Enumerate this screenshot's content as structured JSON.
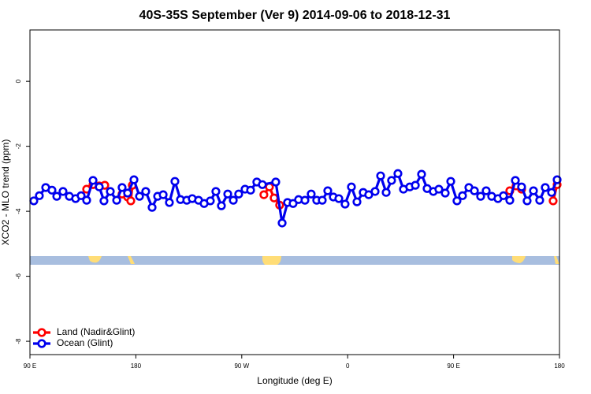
{
  "chart_data": {
    "type": "line",
    "title": "40S-35S September (Ver 9)   2014-09-06 to 2018-12-31",
    "xlabel": "Longitude (deg E)",
    "ylabel": "XCO2 - MLO trend (ppm)",
    "xlim": [
      90,
      540
    ],
    "xticks": [
      {
        "value": 90,
        "label": "90 E"
      },
      180,
      {
        "value": 270,
        "label": "90 W"
      },
      {
        "value": 360,
        "label": "0"
      },
      {
        "value": 450,
        "label": "90 E"
      },
      {
        "value": 540,
        "label": "180"
      }
    ],
    "ylim": [
      -8.41,
      1.58
    ],
    "yticks": [
      0,
      -2,
      -4,
      -6,
      -8
    ],
    "legend": "bottomleft",
    "series": [
      {
        "name": "Land (Nadir&Glint)",
        "color": "#ff0000",
        "x": [
          138.2,
          143.6,
          148.9,
          153.6,
          null,
          168.3,
          173.0,
          175.7,
          177.0,
          null,
          288.8,
          293.5,
          297.5,
          302.2,
          null,
          497.8,
          503.1,
          507.8,
          null,
          534.6,
          538.0
        ],
        "values": [
          -3.32,
          -3.18,
          -3.22,
          -3.2,
          null,
          -3.47,
          -3.56,
          -3.68,
          -3.2,
          null,
          -3.49,
          -3.25,
          -3.59,
          -3.81,
          null,
          -3.37,
          -3.22,
          -3.32,
          null,
          -3.68,
          -3.18
        ]
      },
      {
        "name": "Ocean (Glint)",
        "color": "#0000ee",
        "x": [
          93.3,
          98.0,
          103.4,
          108.7,
          112.8,
          118.1,
          123.5,
          128.8,
          133.5,
          138.2,
          143.6,
          148.9,
          152.9,
          158.3,
          163.7,
          168.3,
          173.0,
          178.4,
          183.1,
          188.4,
          193.8,
          198.5,
          203.2,
          208.5,
          213.2,
          217.9,
          223.3,
          227.9,
          233.3,
          238.0,
          243.3,
          248.0,
          252.7,
          258.1,
          262.8,
          267.4,
          272.8,
          277.5,
          282.8,
          287.5,
          298.9,
          304.3,
          308.9,
          313.6,
          318.3,
          323.7,
          329.0,
          333.7,
          338.4,
          343.1,
          347.8,
          352.5,
          357.8,
          363.2,
          367.9,
          373.2,
          377.9,
          383.3,
          388.0,
          392.7,
          397.3,
          402.7,
          407.4,
          412.8,
          417.5,
          422.8,
          427.5,
          432.8,
          437.5,
          442.9,
          447.6,
          452.9,
          457.6,
          463.0,
          467.7,
          473.0,
          477.7,
          482.4,
          487.7,
          492.4,
          497.8,
          502.5,
          507.8,
          512.5,
          517.9,
          523.2,
          527.9,
          533.3,
          538.0
        ],
        "values": [
          -3.68,
          -3.52,
          -3.27,
          -3.35,
          -3.54,
          -3.39,
          -3.54,
          -3.61,
          -3.52,
          -3.66,
          -3.05,
          -3.25,
          -3.68,
          -3.39,
          -3.66,
          -3.27,
          -3.44,
          -3.03,
          -3.54,
          -3.39,
          -3.88,
          -3.54,
          -3.49,
          -3.73,
          -3.08,
          -3.64,
          -3.66,
          -3.61,
          -3.66,
          -3.76,
          -3.68,
          -3.39,
          -3.83,
          -3.47,
          -3.66,
          -3.47,
          -3.32,
          -3.35,
          -3.1,
          -3.18,
          -3.1,
          -4.36,
          -3.73,
          -3.76,
          -3.64,
          -3.66,
          -3.47,
          -3.66,
          -3.66,
          -3.37,
          -3.56,
          -3.61,
          -3.78,
          -3.25,
          -3.71,
          -3.42,
          -3.49,
          -3.39,
          -2.91,
          -3.42,
          -3.05,
          -2.84,
          -3.32,
          -3.25,
          -3.2,
          -2.86,
          -3.3,
          -3.39,
          -3.32,
          -3.44,
          -3.08,
          -3.68,
          -3.52,
          -3.27,
          -3.37,
          -3.54,
          -3.37,
          -3.54,
          -3.61,
          -3.52,
          -3.66,
          -3.05,
          -3.25,
          -3.68,
          -3.37,
          -3.66,
          -3.27,
          -3.42,
          -3.03
        ]
      }
    ]
  }
}
